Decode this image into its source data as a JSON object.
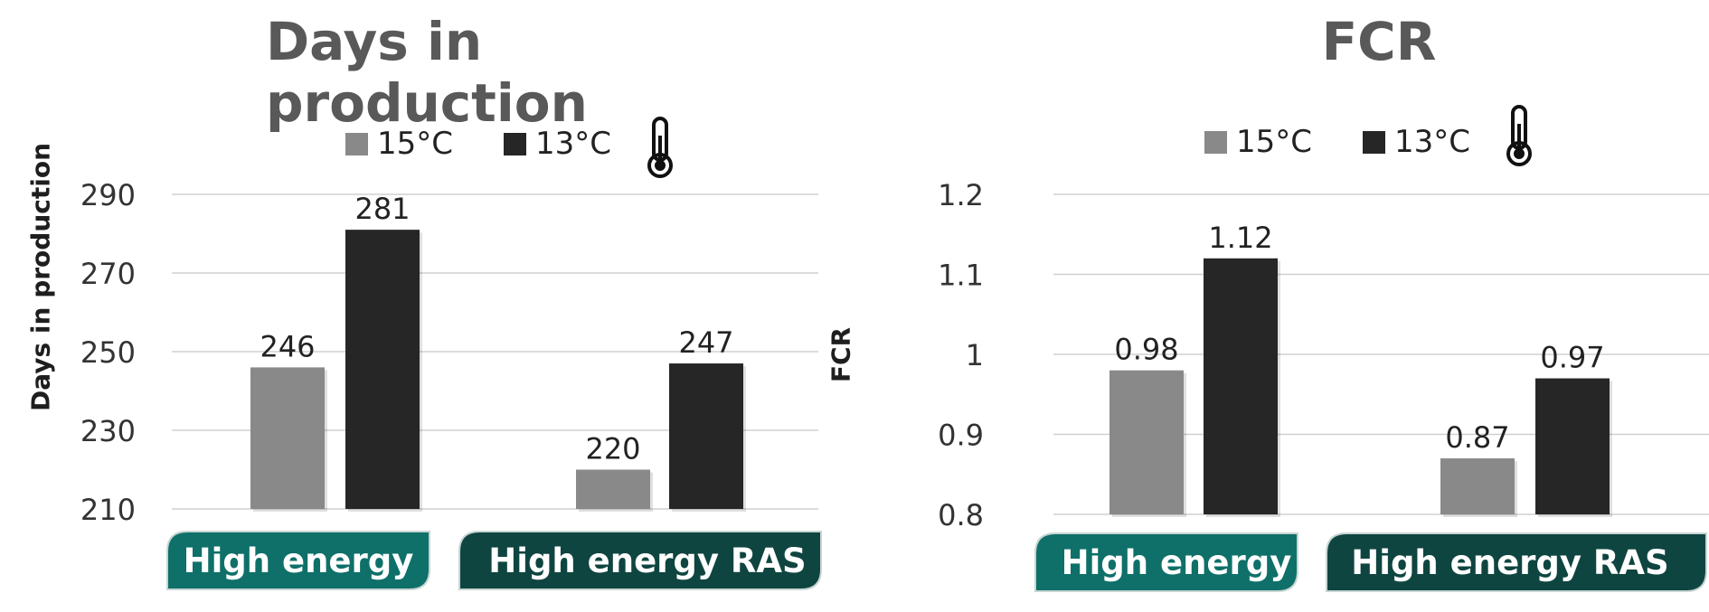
{
  "colors": {
    "series_15": "#898989",
    "series_13": "#262626",
    "grid": "#d0d0d0",
    "cat_high_energy": "#0e7069",
    "cat_high_energy_ras": "#0f4540"
  },
  "chart_data": [
    {
      "type": "bar",
      "title": "Days in production",
      "ylabel": "Days in production",
      "xlabel": "",
      "categories": [
        "High energy",
        "High energy RAS"
      ],
      "series": [
        {
          "name": "15°C",
          "values": [
            246,
            220
          ]
        },
        {
          "name": "13°C",
          "values": [
            281,
            247
          ]
        }
      ],
      "ylim": [
        210,
        290
      ],
      "yticks": [
        "290",
        "270",
        "250",
        "230",
        "210"
      ],
      "ytick_values": [
        290,
        270,
        250,
        230,
        210
      ],
      "data_labels": [
        [
          "246",
          "220"
        ],
        [
          "281",
          "247"
        ]
      ],
      "grid": true,
      "legend": "top-center",
      "legend_icon": "thermometer-icon"
    },
    {
      "type": "bar",
      "title": "FCR",
      "ylabel": "FCR",
      "xlabel": "",
      "categories": [
        "High energy",
        "High energy RAS"
      ],
      "series": [
        {
          "name": "15°C",
          "values": [
            0.98,
            0.87
          ]
        },
        {
          "name": "13°C",
          "values": [
            1.12,
            0.97
          ]
        }
      ],
      "ylim": [
        0.8,
        1.2
      ],
      "yticks": [
        "1.2",
        "1.1",
        "1",
        "0.9",
        "0.8"
      ],
      "ytick_values": [
        1.2,
        1.1,
        1.0,
        0.9,
        0.8
      ],
      "data_labels": [
        [
          "0.98",
          "0.87"
        ],
        [
          "1.12",
          "0.97"
        ]
      ],
      "grid": true,
      "legend": "top-center",
      "legend_icon": "thermometer-icon"
    }
  ]
}
